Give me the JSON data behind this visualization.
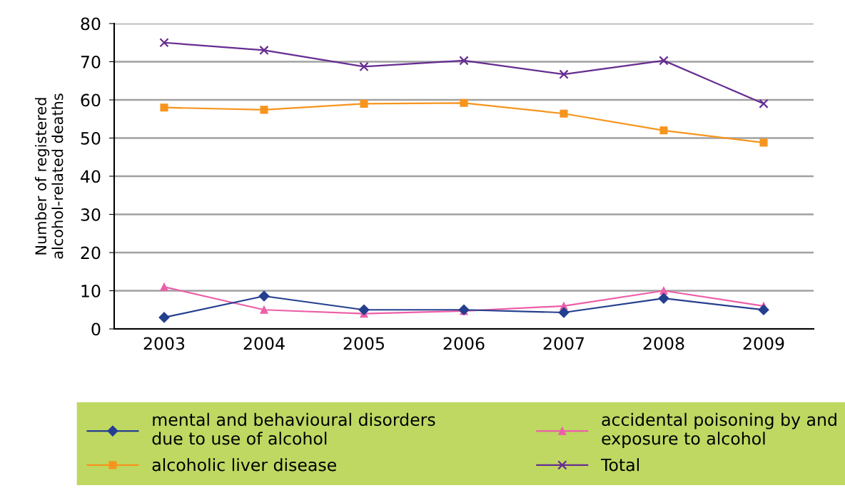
{
  "chart_data": {
    "type": "line",
    "ylabel": "Number of registered\nalcohol-related deaths",
    "categories": [
      "2003",
      "2004",
      "2005",
      "2006",
      "2007",
      "2008",
      "2009"
    ],
    "series": [
      {
        "name": "mental and behavioural disorders\ndue to use of alcohol",
        "color": "#253f8f",
        "marker": "diamond",
        "values": [
          3,
          8.6,
          5,
          5,
          4.3,
          8,
          5
        ]
      },
      {
        "name": "alcoholic liver disease",
        "color": "#f7941d",
        "marker": "square",
        "values": [
          58,
          57.4,
          59,
          59.2,
          56.4,
          52,
          48.8
        ]
      },
      {
        "name": "accidental poisoning by and\nexposure to alcohol",
        "color": "#ec5fa8",
        "marker": "triangle",
        "values": [
          11,
          5,
          4,
          4.7,
          6,
          10,
          6
        ]
      },
      {
        "name": "Total",
        "color": "#662d91",
        "marker": "cross",
        "values": [
          75,
          73,
          68.7,
          70.3,
          66.7,
          70.3,
          59
        ]
      }
    ],
    "ylim": [
      0,
      80
    ],
    "yticks": [
      0,
      10,
      20,
      30,
      40,
      50,
      60,
      70,
      80
    ],
    "grid": "y",
    "legend": "bottom",
    "line_style": "solid"
  }
}
